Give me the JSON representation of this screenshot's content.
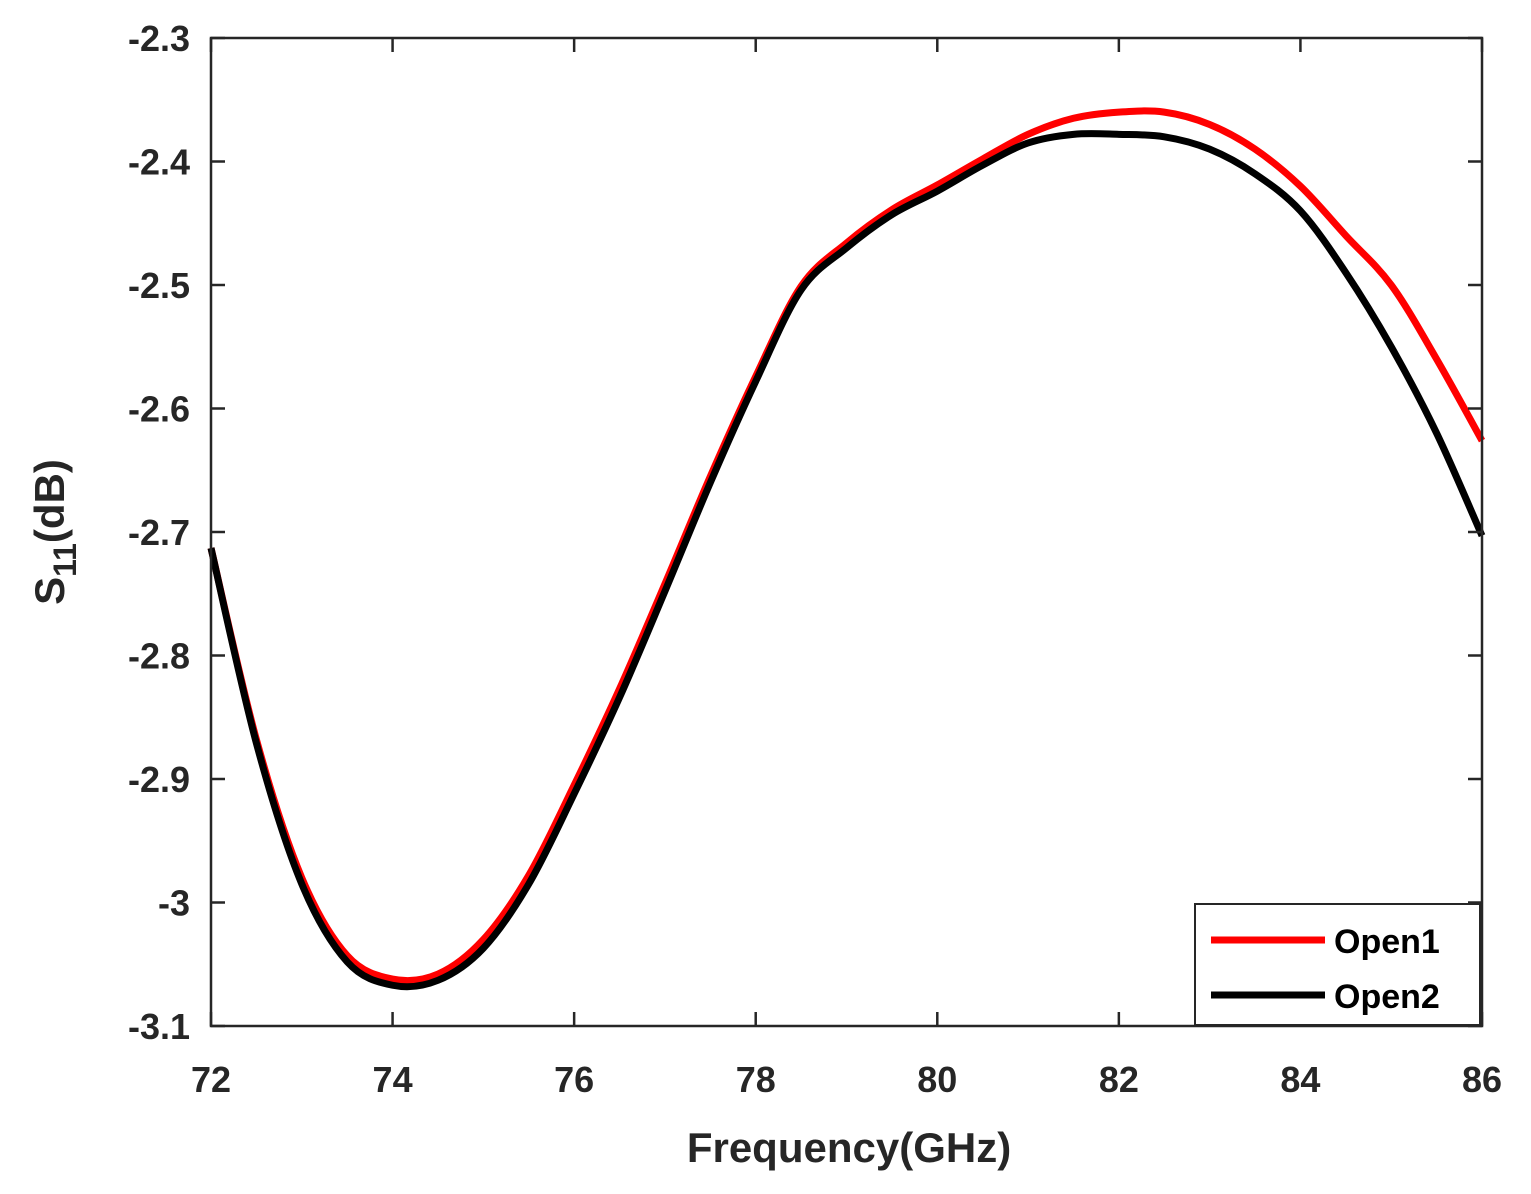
{
  "chart_data": {
    "type": "line",
    "title": "",
    "xlabel": "Frequency(GHz)",
    "ylabel_main": "S",
    "ylabel_sub": "11",
    "ylabel_suffix": "(dB)",
    "xlim": [
      72,
      86
    ],
    "ylim": [
      -3.1,
      -2.3
    ],
    "xticks": [
      72,
      74,
      76,
      78,
      80,
      82,
      84,
      86
    ],
    "xtick_labels": [
      "72",
      "74",
      "76",
      "78",
      "80",
      "82",
      "84",
      "86"
    ],
    "yticks": [
      -2.3,
      -2.4,
      -2.5,
      -2.6,
      -2.7,
      -2.8,
      -2.9,
      -3.0,
      -3.1
    ],
    "ytick_labels": [
      "-2.3",
      "-2.4",
      "-2.5",
      "-2.6",
      "-2.7",
      "-2.8",
      "-2.9",
      "-3",
      "-3.1"
    ],
    "grid": false,
    "legend_position": "bottom-right",
    "x": [
      72,
      72.5,
      73,
      73.5,
      74,
      74.5,
      75,
      75.5,
      76,
      76.5,
      77,
      77.5,
      78,
      78.5,
      79,
      79.5,
      80,
      80.5,
      81,
      81.5,
      82,
      82.5,
      83,
      83.5,
      84,
      84.5,
      85,
      85.5,
      86
    ],
    "series": [
      {
        "name": "Open1",
        "color": "#ff0000",
        "values": [
          -2.713,
          -2.868,
          -2.98,
          -3.043,
          -3.062,
          -3.058,
          -3.03,
          -2.978,
          -2.905,
          -2.827,
          -2.742,
          -2.655,
          -2.574,
          -2.501,
          -2.466,
          -2.439,
          -2.419,
          -2.398,
          -2.378,
          -2.365,
          -2.36,
          -2.36,
          -2.37,
          -2.39,
          -2.42,
          -2.46,
          -2.5,
          -2.56,
          -2.626
        ]
      },
      {
        "name": "Open2",
        "color": "#000000",
        "values": [
          -2.713,
          -2.871,
          -2.985,
          -3.048,
          -3.067,
          -3.063,
          -3.037,
          -2.985,
          -2.912,
          -2.834,
          -2.748,
          -2.66,
          -2.578,
          -2.504,
          -2.47,
          -2.443,
          -2.424,
          -2.403,
          -2.385,
          -2.378,
          -2.378,
          -2.38,
          -2.39,
          -2.41,
          -2.44,
          -2.49,
          -2.55,
          -2.62,
          -2.703
        ]
      }
    ]
  }
}
